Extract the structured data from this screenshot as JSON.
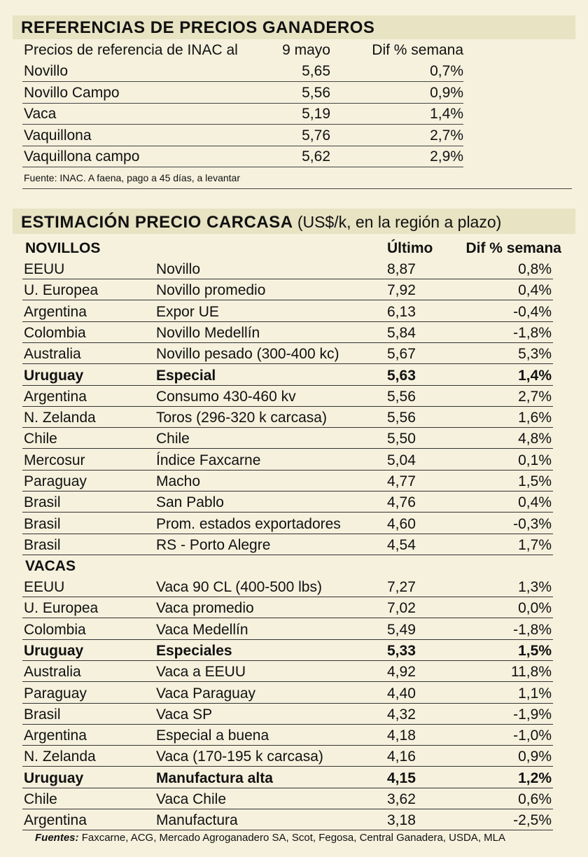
{
  "ref": {
    "title": "REFERENCIAS DE PRECIOS GANADEROS",
    "header": {
      "label": "Precios de referencia de INAC al",
      "date": "9 mayo",
      "diff": "Dif % semana"
    },
    "rows": [
      {
        "name": "Novillo",
        "price": "5,65",
        "diff": "0,7%"
      },
      {
        "name": "Novillo Campo",
        "price": "5,56",
        "diff": "0,9%"
      },
      {
        "name": "Vaca",
        "price": "5,19",
        "diff": "1,4%"
      },
      {
        "name": "Vaquillona",
        "price": "5,76",
        "diff": "2,7%"
      },
      {
        "name": "Vaquillona campo",
        "price": "5,62",
        "diff": "2,9%"
      }
    ],
    "source": "Fuente: INAC. A faena, pago a 45 días, a levantar"
  },
  "est": {
    "title": "ESTIMACIÓN PRECIO CARCASA",
    "subtitle": "(US$/k, en la región a plazo)",
    "novillos_label": "NOVILLOS",
    "col_last": "Último",
    "col_diff": "Dif % semana",
    "novillos": [
      {
        "country": "EEUU",
        "desc": "Novillo",
        "last": "8,87",
        "diff": "0,8%",
        "bold": false
      },
      {
        "country": "U. Europea",
        "desc": "Novillo promedio",
        "last": "7,92",
        "diff": "0,4%",
        "bold": false
      },
      {
        "country": "Argentina",
        "desc": "Expor UE",
        "last": "6,13",
        "diff": "-0,4%",
        "bold": false
      },
      {
        "country": "Colombia",
        "desc": "Novillo Medellín",
        "last": "5,84",
        "diff": "-1,8%",
        "bold": false
      },
      {
        "country": "Australia",
        "desc": "Novillo pesado (300-400 kc)",
        "last": "5,67",
        "diff": "5,3%",
        "bold": false
      },
      {
        "country": "Uruguay",
        "desc": "Especial",
        "last": "5,63",
        "diff": "1,4%",
        "bold": true
      },
      {
        "country": "Argentina",
        "desc": "Consumo 430-460 kv",
        "last": "5,56",
        "diff": "2,7%",
        "bold": false
      },
      {
        "country": "N. Zelanda",
        "desc": "Toros (296-320 k carcasa)",
        "last": "5,56",
        "diff": "1,6%",
        "bold": false
      },
      {
        "country": "Chile",
        "desc": "Chile",
        "last": "5,50",
        "diff": "4,8%",
        "bold": false
      },
      {
        "country": "Mercosur",
        "desc": "Índice Faxcarne",
        "last": "5,04",
        "diff": "0,1%",
        "bold": false
      },
      {
        "country": "Paraguay",
        "desc": "Macho",
        "last": "4,77",
        "diff": "1,5%",
        "bold": false
      },
      {
        "country": "Brasil",
        "desc": "San Pablo",
        "last": "4,76",
        "diff": "0,4%",
        "bold": false
      },
      {
        "country": "Brasil",
        "desc": "Prom. estados exportadores",
        "last": "4,60",
        "diff": "-0,3%",
        "bold": false
      },
      {
        "country": "Brasil",
        "desc": "RS - Porto Alegre",
        "last": "4,54",
        "diff": "1,7%",
        "bold": false
      }
    ],
    "vacas_label": "VACAS",
    "vacas": [
      {
        "country": "EEUU",
        "desc": "Vaca 90 CL (400-500 lbs)",
        "last": "7,27",
        "diff": "1,3%",
        "bold": false
      },
      {
        "country": "U. Europea",
        "desc": "Vaca promedio",
        "last": "7,02",
        "diff": "0,0%",
        "bold": false
      },
      {
        "country": "Colombia",
        "desc": "Vaca Medellín",
        "last": "5,49",
        "diff": "-1,8%",
        "bold": false
      },
      {
        "country": "Uruguay",
        "desc": "Especiales",
        "last": "5,33",
        "diff": "1,5%",
        "bold": true
      },
      {
        "country": "Australia",
        "desc": "Vaca a EEUU",
        "last": "4,92",
        "diff": "11,8%",
        "bold": false
      },
      {
        "country": "Paraguay",
        "desc": "Vaca Paraguay",
        "last": "4,40",
        "diff": "1,1%",
        "bold": false
      },
      {
        "country": "Brasil",
        "desc": "Vaca SP",
        "last": "4,32",
        "diff": "-1,9%",
        "bold": false
      },
      {
        "country": "Argentina",
        "desc": "Especial a buena",
        "last": "4,18",
        "diff": "-1,0%",
        "bold": false
      },
      {
        "country": "N. Zelanda",
        "desc": "Vaca (170-195 k carcasa)",
        "last": "4,16",
        "diff": "0,9%",
        "bold": false
      },
      {
        "country": "Uruguay",
        "desc": "Manufactura alta",
        "last": "4,15",
        "diff": "1,2%",
        "bold": true
      },
      {
        "country": "Chile",
        "desc": "Vaca Chile",
        "last": "3,62",
        "diff": "0,6%",
        "bold": false
      },
      {
        "country": "Argentina",
        "desc": "Manufactura",
        "last": "3,18",
        "diff": "-2,5%",
        "bold": false
      }
    ],
    "sources_label": "Fuentes:",
    "sources": "Faxcarne, ACG, Mercado Agroganadero SA, Scot, Fegosa, Central Ganadera, USDA, MLA"
  }
}
